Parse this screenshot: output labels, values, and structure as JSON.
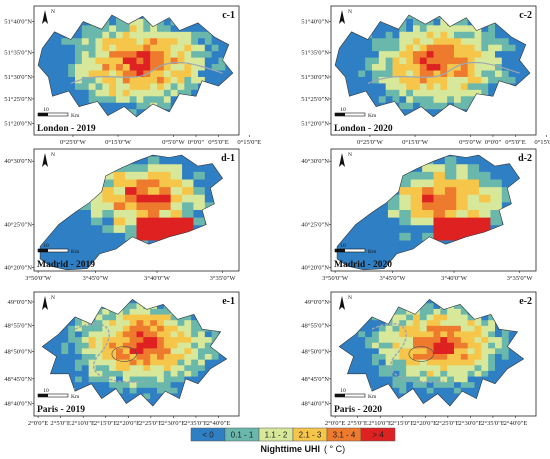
{
  "colors": {
    "c0": "#2f7fc4",
    "c1": "#6ab7ac",
    "c2": "#d7e89a",
    "c3": "#f6c64a",
    "c4": "#ee7a2e",
    "c5": "#de2121",
    "outline": "#333333",
    "river": "#9ba7b5"
  },
  "legend": {
    "title": "Nighttime UHI",
    "unit": "( ° C)",
    "items": [
      {
        "label": "< 0",
        "color": "c0"
      },
      {
        "label": "0.1 - 1",
        "color": "c1"
      },
      {
        "label": "1.1 - 2",
        "color": "c2"
      },
      {
        "label": "2.1 - 3",
        "color": "c3"
      },
      {
        "label": "3.1 - 4",
        "color": "c4"
      },
      {
        "label": "> 4",
        "color": "c5"
      }
    ]
  },
  "north_arrow": {
    "letter": "N",
    "icon": "north-arrow-icon"
  },
  "scalebar": {
    "value": "10",
    "unit": "Km"
  },
  "rows": [
    {
      "city": "London",
      "y_ticks": [
        "51°40'0\"N",
        "51°35'0\"N",
        "51°30'0\"N",
        "51°25'0\"N",
        "51°20'0\"N"
      ],
      "x_ticks": [
        "0°25'0\"W",
        "0°15'0\"W",
        "0°5'0\"W",
        "0°0'0\"",
        "0°5'0\"E",
        "0°15'0\"E"
      ],
      "panels": [
        {
          "label": "c-1",
          "caption": "London - 2019"
        },
        {
          "label": "c-2",
          "caption": "London - 2020"
        }
      ]
    },
    {
      "city": "Madrid",
      "y_ticks": [
        "40°30'0\"N",
        "40°25'0\"N",
        "40°20'0\"N"
      ],
      "x_ticks": [
        "3°50'0\"W",
        "3°45'0\"W",
        "3°40'0\"W",
        "3°35'0\"W"
      ],
      "panels": [
        {
          "label": "d-1",
          "caption": "Madrid - 2019"
        },
        {
          "label": "d-2",
          "caption": "Madrid - 2020"
        }
      ]
    },
    {
      "city": "Paris",
      "y_ticks": [
        "49°0'0\"N",
        "48°55'0\"N",
        "48°50'0\"N",
        "48°45'0\"N",
        "48°40'0\"N"
      ],
      "x_ticks": [
        "2°0'0\"E",
        "2°5'0\"E",
        "2°10'0\"E",
        "2°15'0\"E",
        "2°20'0\"E",
        "2°25'0\"E",
        "2°30'0\"E",
        "2°35'0\"E",
        "2°40'0\"E"
      ],
      "panels": [
        {
          "label": "e-1",
          "caption": "Paris - 2019"
        },
        {
          "label": "e-2",
          "caption": "Paris - 2020"
        }
      ]
    }
  ]
}
